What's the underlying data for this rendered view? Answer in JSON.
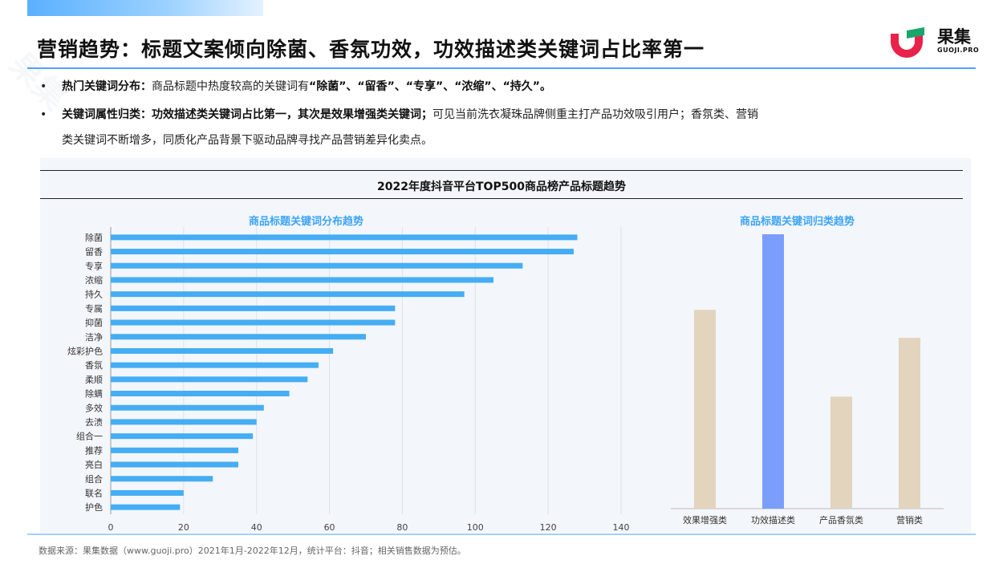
{
  "header": {
    "title": "营销趋势：标题文案倾向除菌、香氛功效，功效描述类关键词占比率第一",
    "logo_text": "果集",
    "logo_sub": "GUOJI.PRO"
  },
  "bullets": [
    {
      "marker": "•",
      "label": "热门关键词分布：",
      "text_plain": "商品标题中热度较高的关键词有",
      "text_bold": "“除菌”、“留香”、“专享”、“浓缩”、“持久”。"
    },
    {
      "marker": "•",
      "label": "关键词属性归类：",
      "text_bold": "功效描述类关键词占比第一，其次是效果增强类关键词；",
      "text_plain": "可见当前洗衣凝珠品牌侧重主打产品功效吸引用户；香氛类、营销",
      "text_cont": "类关键词不断增多，同质化产品背景下驱动品牌寻找产品营销差异化卖点。"
    }
  ],
  "chart_header": {
    "title": "2022年度抖音平台TOP500商品榜产品标题趋势"
  },
  "colors": {
    "bar_blue": "#45adf3",
    "bar_tan": "#e3d4be",
    "bar_highlight": "#7b9dfb",
    "accent": "#4da6ff"
  },
  "chart_data": [
    {
      "type": "bar",
      "orientation": "horizontal",
      "title": "商品标题关键词分布趋势",
      "categories": [
        "除菌",
        "留香",
        "专享",
        "浓缩",
        "持久",
        "专属",
        "抑菌",
        "洁净",
        "炫彩护色",
        "香氛",
        "柔顺",
        "除螨",
        "多效",
        "去渍",
        "组合一",
        "推荐",
        "亮白",
        "组合",
        "联名",
        "护色"
      ],
      "values": [
        128,
        127,
        113,
        105,
        97,
        78,
        78,
        70,
        61,
        57,
        54,
        49,
        42,
        40,
        39,
        35,
        35,
        28,
        20,
        19
      ],
      "xlim": [
        0,
        140
      ],
      "xticks": [
        0,
        20,
        40,
        60,
        80,
        100,
        120,
        140
      ],
      "grid": true
    },
    {
      "type": "bar",
      "orientation": "vertical",
      "title": "商品标题关键词归类趋势",
      "categories": [
        "效果增强类",
        "功效描述类",
        "产品香氛类",
        "营销类"
      ],
      "values": [
        71,
        98,
        40,
        61
      ],
      "highlight_index": 1,
      "grid": false
    }
  ],
  "footer": {
    "source": "数据来源：果集数据（www.guoji.pro）2021年1月-2022年12月，统计平台：抖音；相关销售数据为预估。"
  }
}
